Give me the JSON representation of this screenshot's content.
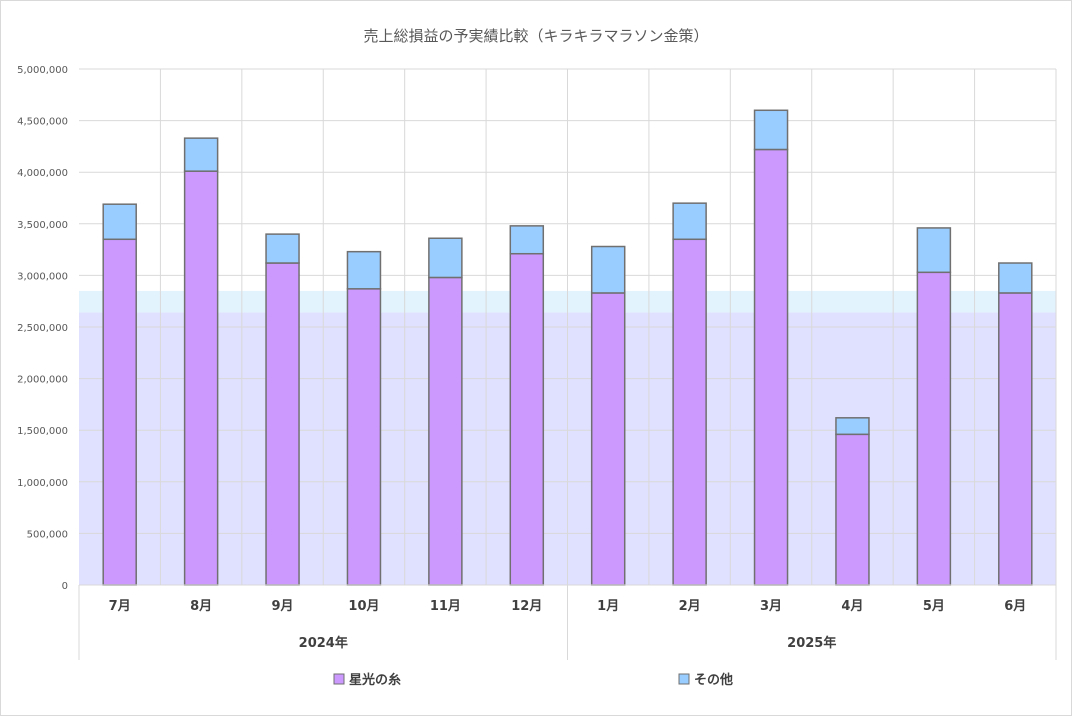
{
  "chart_data": {
    "type": "bar",
    "stacked": true,
    "title": "売上総損益の予実績比較（キラキラマラソン金策）",
    "categories": [
      "7月",
      "8月",
      "9月",
      "10月",
      "11月",
      "12月",
      "1月",
      "2月",
      "3月",
      "4月",
      "5月",
      "6月"
    ],
    "groups": [
      {
        "label": "2024年",
        "count": 6
      },
      {
        "label": "2025年",
        "count": 6
      }
    ],
    "series": [
      {
        "name": "星光の糸",
        "color": "#cc99ff",
        "values": [
          3350000,
          4010000,
          3120000,
          2870000,
          2980000,
          3210000,
          2830000,
          3350000,
          4220000,
          1460000,
          3030000,
          2830000
        ]
      },
      {
        "name": "その他",
        "color": "#99ccff",
        "values": [
          340000,
          320000,
          280000,
          360000,
          380000,
          270000,
          450000,
          350000,
          380000,
          160000,
          430000,
          290000
        ]
      }
    ],
    "background_bands": [
      {
        "from": 0,
        "to": 2640000,
        "color": "#e0e0ff"
      },
      {
        "from": 2640000,
        "to": 2850000,
        "color": "#e3f3fd"
      }
    ],
    "ylim": [
      0,
      5000000
    ],
    "yticks": [
      "0",
      "500,000",
      "1,000,000",
      "1,500,000",
      "2,000,000",
      "2,500,000",
      "3,000,000",
      "3,500,000",
      "4,000,000",
      "4,500,000",
      "5,000,000"
    ],
    "grid": true,
    "legend_position": "bottom",
    "bar_border_color": "#707070",
    "grid_color": "#d9d9d9"
  }
}
